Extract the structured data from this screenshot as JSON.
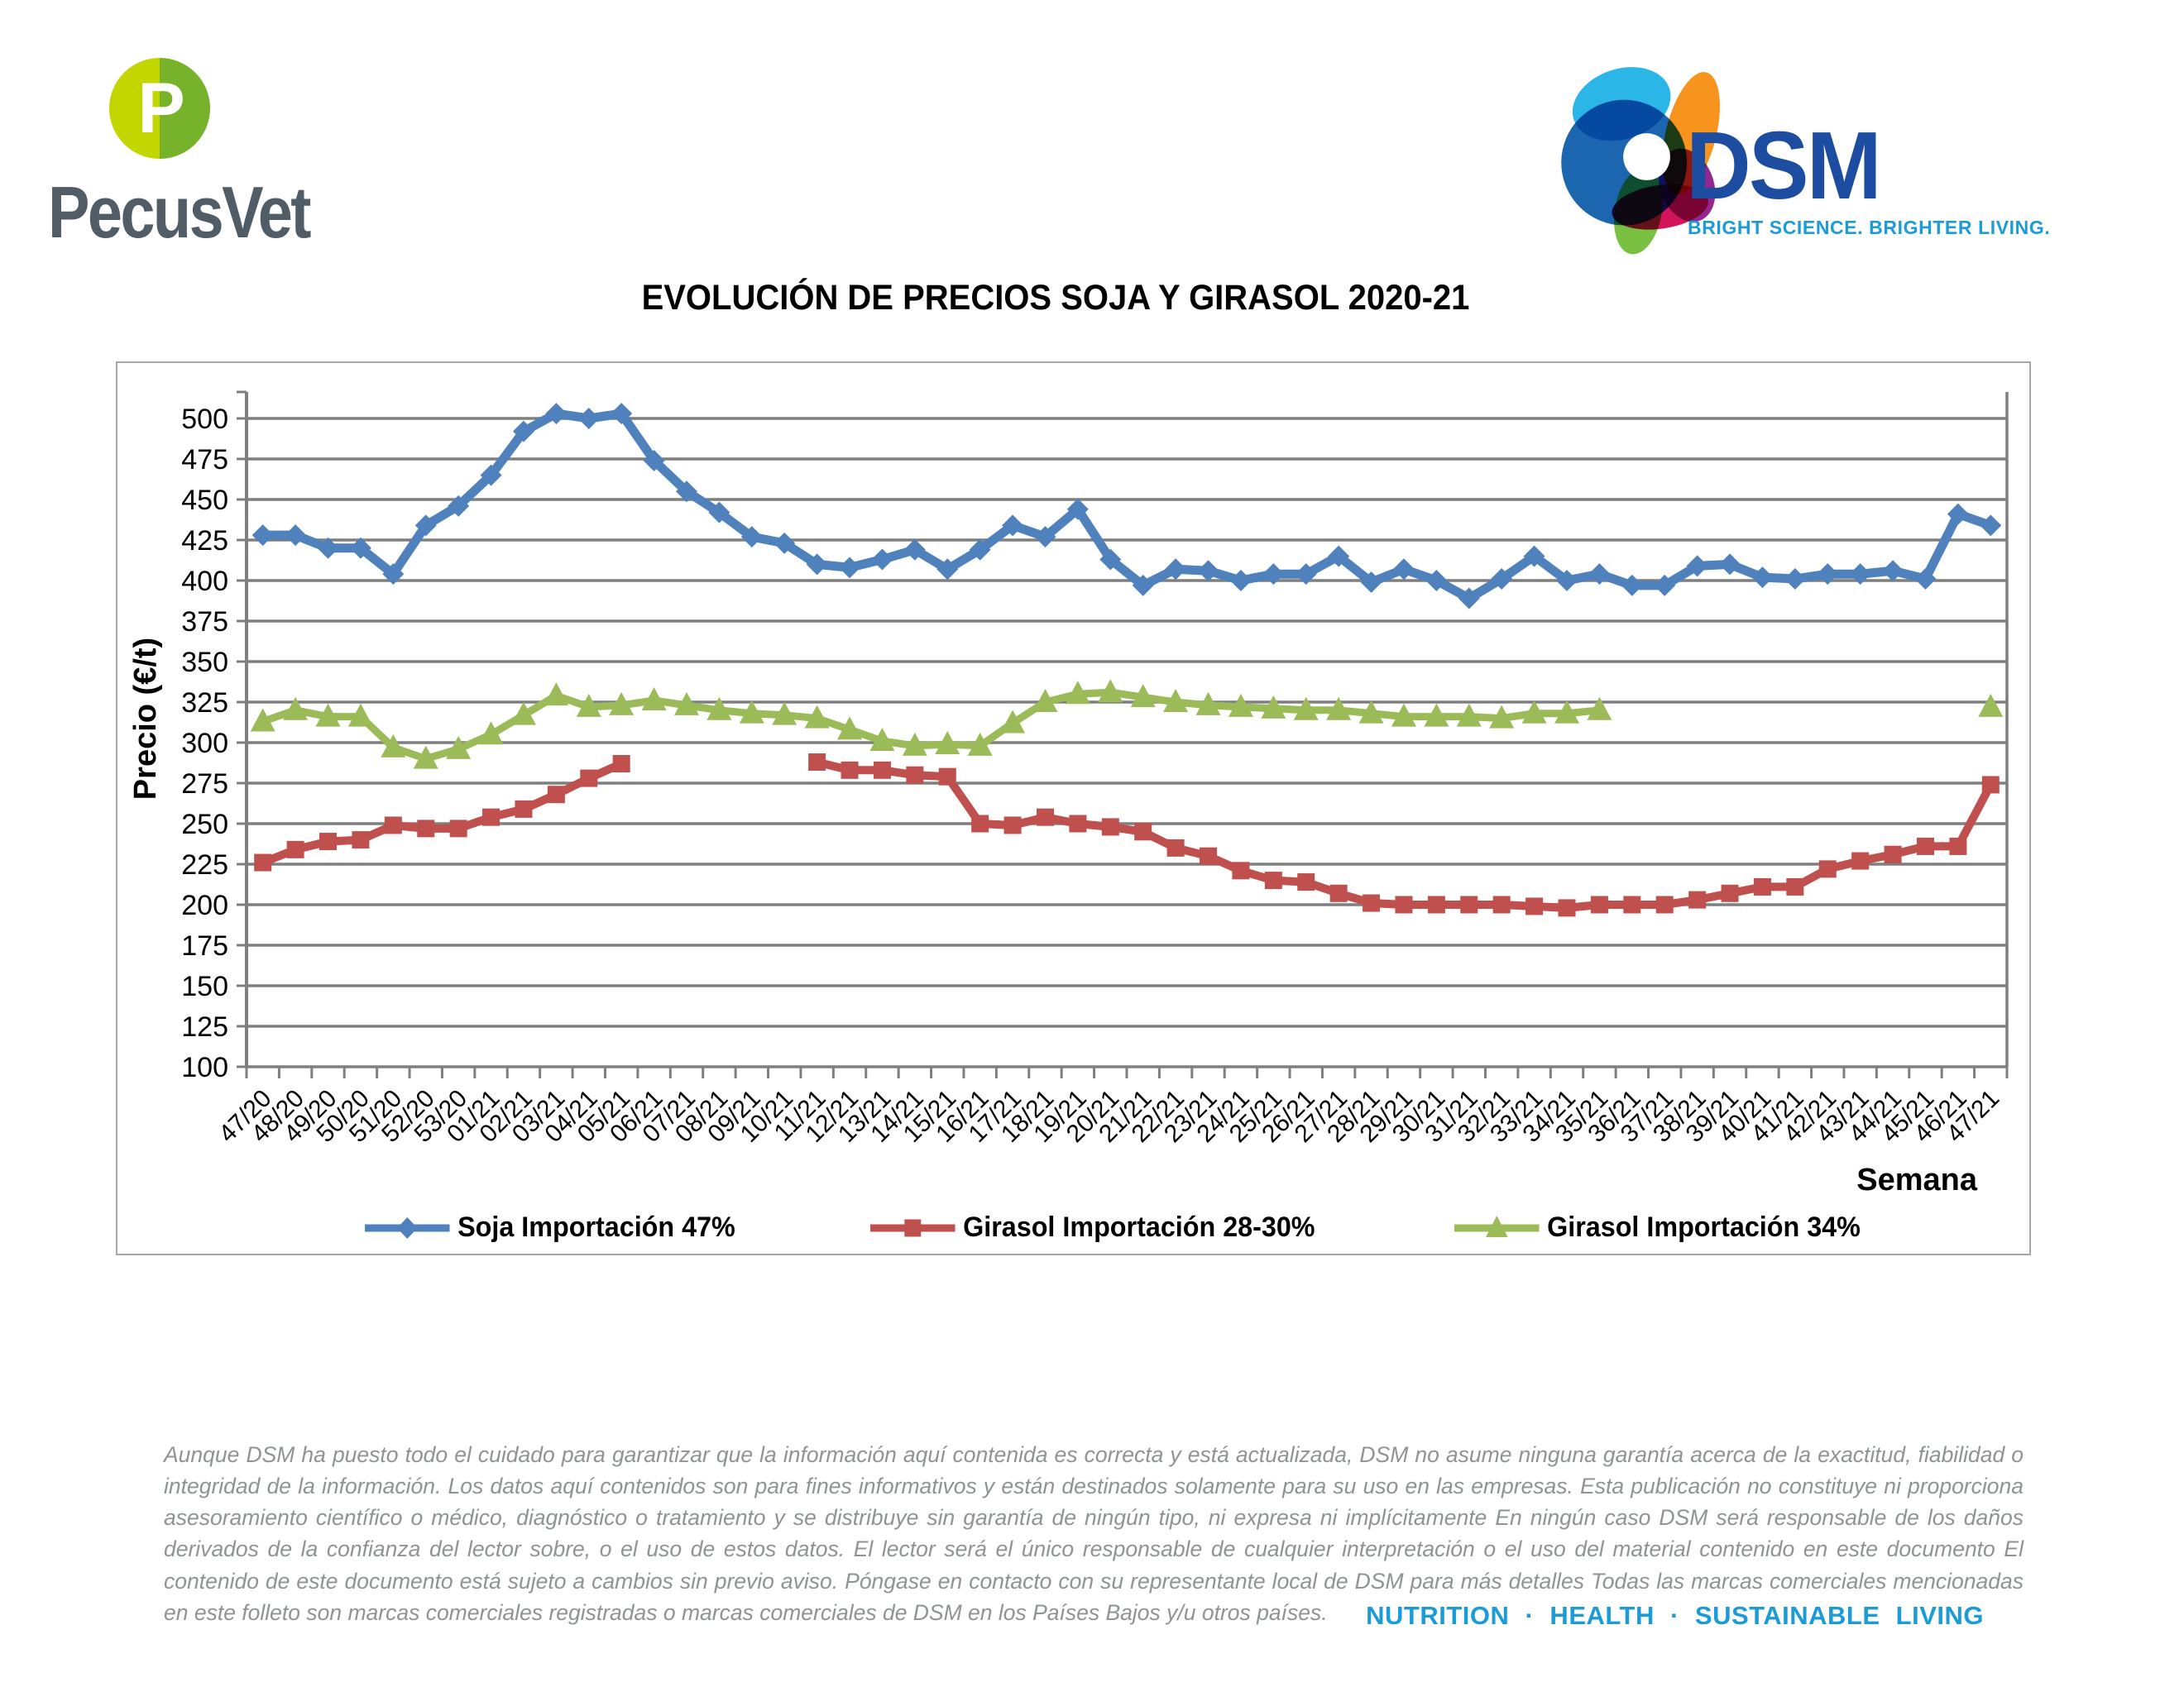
{
  "header": {
    "pecusvet": {
      "monogram": "P",
      "wordmark": "PecusVet",
      "circle_left_color": "#c3d600",
      "circle_right_color": "#76b32b",
      "wordmark_color": "#515d66"
    },
    "dsm": {
      "name": "DSM",
      "tagline": "BRIGHT SCIENCE. BRIGHTER LIVING.",
      "name_color": "#1d4da1",
      "tagline_color": "#1b9cd8"
    }
  },
  "title": "EVOLUCIÓN DE PRECIOS SOJA Y GIRASOL 2020-21",
  "chart_data": {
    "type": "line",
    "title": "EVOLUCIÓN DE PRECIOS SOJA Y GIRASOL 2020-21",
    "xlabel": "Semana",
    "ylabel": "Precio (€/t)",
    "ylim": [
      100,
      500
    ],
    "ytick_step": 25,
    "grid": true,
    "legend_position": "bottom",
    "gridline_color": "#7f7f7f",
    "box_border_color": "#a6a6a6",
    "categories": [
      "47/20",
      "48/20",
      "49/20",
      "50/20",
      "51/20",
      "52/20",
      "53/20",
      "01/21",
      "02/21",
      "03/21",
      "04/21",
      "05/21",
      "06/21",
      "07/21",
      "08/21",
      "09/21",
      "10/21",
      "11/21",
      "12/21",
      "13/21",
      "14/21",
      "15/21",
      "16/21",
      "17/21",
      "18/21",
      "19/21",
      "20/21",
      "21/21",
      "22/21",
      "23/21",
      "24/21",
      "25/21",
      "26/21",
      "27/21",
      "28/21",
      "29/21",
      "30/21",
      "31/21",
      "32/21",
      "33/21",
      "34/21",
      "35/21",
      "36/21",
      "37/21",
      "38/21",
      "39/21",
      "40/21",
      "41/21",
      "42/21",
      "43/21",
      "44/21",
      "45/21",
      "46/21",
      "47/21"
    ],
    "series": [
      {
        "name": "Soja Importación 47%",
        "color": "#4f81bd",
        "marker": "diamond",
        "values": [
          428,
          428,
          420,
          420,
          404,
          434,
          446,
          465,
          492,
          503,
          500,
          503,
          474,
          455,
          442,
          427,
          423,
          410,
          408,
          413,
          419,
          407,
          419,
          434,
          427,
          444,
          413,
          397,
          407,
          406,
          400,
          404,
          404,
          415,
          399,
          407,
          400,
          389,
          401,
          415,
          400,
          404,
          397,
          397,
          409,
          410,
          402,
          401,
          404,
          404,
          406,
          401,
          441,
          434
        ]
      },
      {
        "name": "Girasol Importación 28-30%",
        "color": "#c0504d",
        "marker": "square",
        "values": [
          226,
          234,
          239,
          240,
          249,
          247,
          247,
          254,
          259,
          268,
          278,
          287,
          null,
          null,
          null,
          null,
          null,
          288,
          283,
          283,
          280,
          279,
          250,
          249,
          254,
          250,
          248,
          245,
          235,
          230,
          221,
          215,
          214,
          207,
          201,
          200,
          200,
          200,
          200,
          199,
          198,
          200,
          200,
          200,
          203,
          207,
          211,
          211,
          222,
          227,
          231,
          236,
          236,
          274
        ]
      },
      {
        "name": "Girasol Importación 34%",
        "color": "#9bbb59",
        "marker": "triangle",
        "values": [
          313,
          320,
          316,
          316,
          297,
          290,
          296,
          305,
          317,
          329,
          322,
          323,
          326,
          323,
          320,
          318,
          317,
          315,
          308,
          301,
          298,
          299,
          298,
          312,
          325,
          330,
          331,
          328,
          325,
          323,
          322,
          321,
          320,
          320,
          318,
          316,
          316,
          316,
          315,
          318,
          318,
          320,
          null,
          null,
          null,
          null,
          null,
          null,
          null,
          null,
          null,
          null,
          null,
          322
        ]
      }
    ]
  },
  "footer": {
    "disclaimer": "Aunque DSM ha puesto todo el cuidado para garantizar que la información aquí contenida es correcta y está actualizada, DSM no asume ninguna garantía acerca de la exactitud, fiabilidad o integridad de la información. Los datos aquí contenidos son para fines informativos y están destinados solamente para su uso en las empresas. Esta publicación no constituye ni proporciona asesoramiento científico o médico, diagnóstico o tratamiento y se distribuye sin garantía de ningún tipo, ni expresa ni implícitamente En ningún caso DSM será responsable de los daños derivados de la confianza del lector sobre, o el uso de estos datos. El lector será el único responsable de cualquier interpretación o el uso del material contenido en este documento El contenido de este documento está sujeto a cambios sin previo aviso. Póngase en contacto con su representante local de DSM para más detalles Todas las marcas comerciales mencionadas en este folleto son marcas comerciales registradas o marcas comerciales de DSM en los Países Bajos y/u otros países.",
    "tagline": "NUTRITION · HEALTH · SUSTAINABLE LIVING"
  }
}
